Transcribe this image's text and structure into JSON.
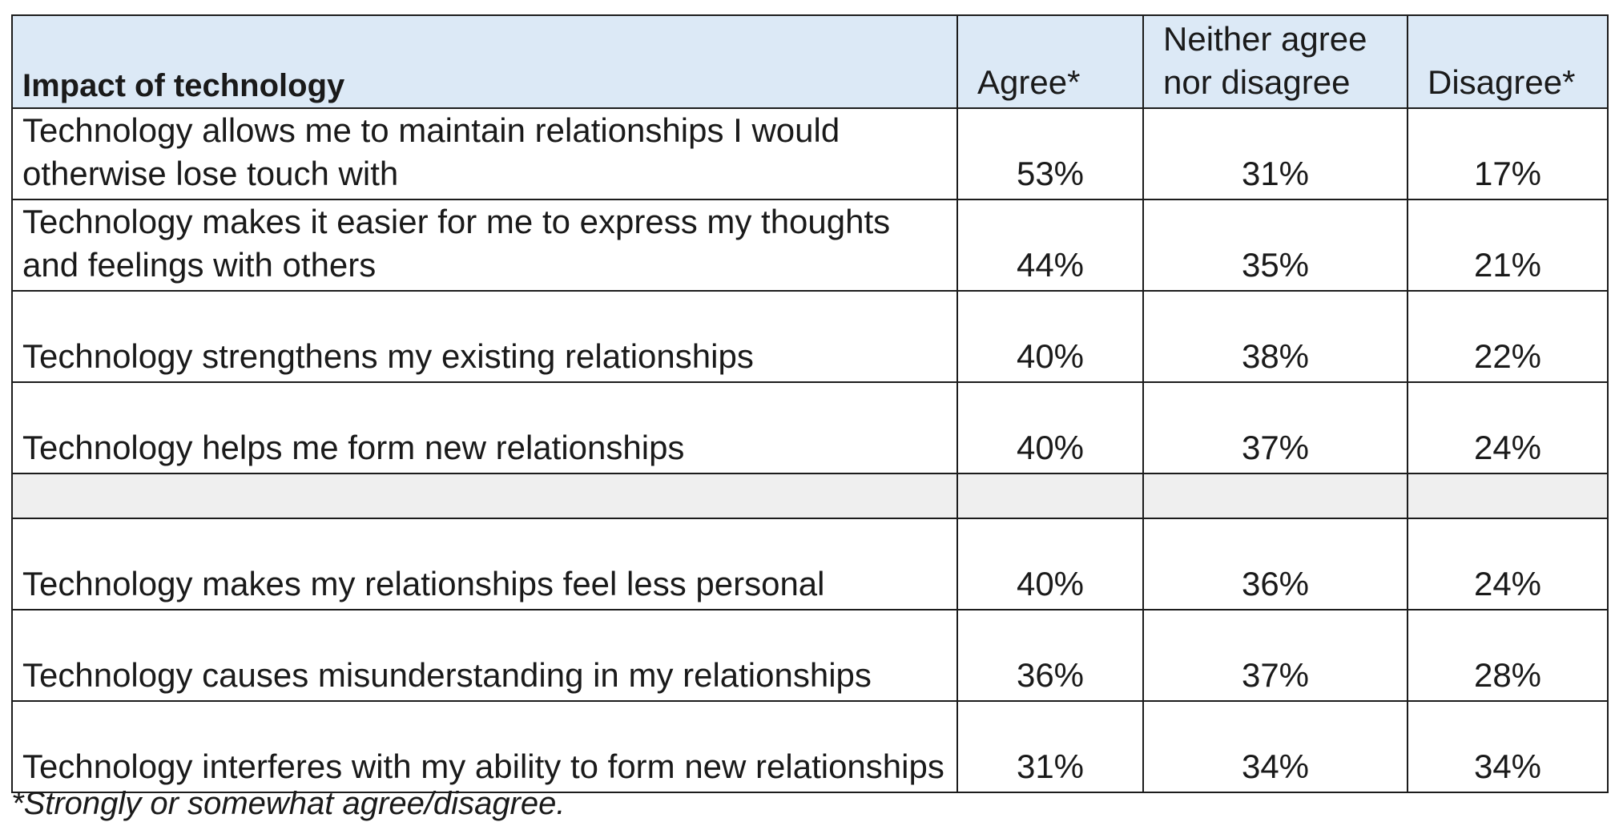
{
  "table": {
    "headers": {
      "item": "Impact of technology",
      "agree": "Agree*",
      "neither": "Neither agree nor disagree",
      "disagree": "Disagree*"
    },
    "rows": [
      {
        "item": "Technology allows me to maintain relationships I would otherwise lose touch with",
        "agree": "53%",
        "neither": "31%",
        "disagree": "17%"
      },
      {
        "item": "Technology makes it easier for me to express my thoughts and feelings with others",
        "agree": "44%",
        "neither": "35%",
        "disagree": "21%"
      },
      {
        "item": "Technology strengthens my existing relationships",
        "agree": "40%",
        "neither": "38%",
        "disagree": "22%"
      },
      {
        "item": "Technology helps me form new relationships",
        "agree": "40%",
        "neither": "37%",
        "disagree": "24%"
      },
      {
        "item": "Technology makes my relationships feel less personal",
        "agree": "40%",
        "neither": "36%",
        "disagree": "24%"
      },
      {
        "item": "Technology causes misunderstanding in my relationships",
        "agree": "36%",
        "neither": "37%",
        "disagree": "28%"
      },
      {
        "item": "Technology interferes with my ability to form new relationships",
        "agree": "31%",
        "neither": "34%",
        "disagree": "34%"
      }
    ]
  },
  "footnote": "*Strongly or somewhat agree/disagree.",
  "colors": {
    "header_bg": "#dce9f6",
    "spacer_bg": "#efefef",
    "border": "#1c1c1c"
  }
}
